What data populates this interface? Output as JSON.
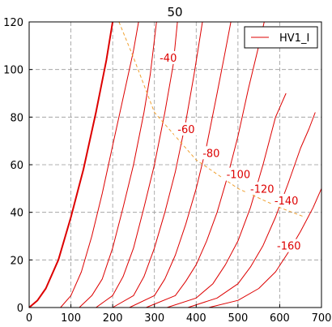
{
  "chart_data": {
    "type": "line",
    "title": "50",
    "xlabel": "",
    "ylabel": "",
    "xlim": [
      0,
      700
    ],
    "ylim": [
      0,
      120
    ],
    "xticks": [
      0,
      100,
      200,
      300,
      400,
      500,
      600,
      700
    ],
    "yticks": [
      0,
      20,
      40,
      60,
      80,
      100,
      120
    ],
    "grid": true,
    "legend": {
      "position": "top-right",
      "entries": [
        "HV1_I"
      ]
    },
    "colors": {
      "series": "#dd0000",
      "load_line": "#f0a030",
      "grid": "#999999"
    },
    "series": [
      {
        "label": "",
        "thick": true,
        "points": [
          [
            0,
            0
          ],
          [
            20,
            3
          ],
          [
            40,
            8
          ],
          [
            70,
            20
          ],
          [
            100,
            38
          ],
          [
            130,
            58
          ],
          [
            160,
            82
          ],
          [
            185,
            104
          ],
          [
            200,
            120
          ]
        ]
      },
      {
        "label": "-40",
        "points": [
          [
            75,
            0
          ],
          [
            100,
            5
          ],
          [
            125,
            15
          ],
          [
            150,
            30
          ],
          [
            175,
            48
          ],
          [
            200,
            68
          ],
          [
            225,
            88
          ],
          [
            250,
            108
          ],
          [
            262,
            120
          ]
        ]
      },
      {
        "label": "-60",
        "points": [
          [
            120,
            0
          ],
          [
            150,
            5
          ],
          [
            175,
            12
          ],
          [
            200,
            25
          ],
          [
            225,
            42
          ],
          [
            250,
            60
          ],
          [
            275,
            82
          ],
          [
            290,
            98
          ],
          [
            305,
            120
          ]
        ]
      },
      {
        "label": "-80",
        "points": [
          [
            160,
            0
          ],
          [
            200,
            5
          ],
          [
            225,
            13
          ],
          [
            250,
            25
          ],
          [
            275,
            42
          ],
          [
            300,
            60
          ],
          [
            325,
            82
          ],
          [
            345,
            102
          ],
          [
            355,
            120
          ]
        ]
      },
      {
        "label": "-100",
        "points": [
          [
            200,
            0
          ],
          [
            250,
            5
          ],
          [
            275,
            13
          ],
          [
            300,
            25
          ],
          [
            325,
            40
          ],
          [
            350,
            57
          ],
          [
            375,
            78
          ],
          [
            395,
            98
          ],
          [
            415,
            120
          ]
        ]
      },
      {
        "label": "-120",
        "points": [
          [
            240,
            0
          ],
          [
            300,
            5
          ],
          [
            325,
            12
          ],
          [
            350,
            22
          ],
          [
            375,
            35
          ],
          [
            400,
            50
          ],
          [
            425,
            68
          ],
          [
            450,
            90
          ],
          [
            470,
            108
          ],
          [
            483,
            120
          ]
        ]
      },
      {
        "label": "-140",
        "points": [
          [
            280,
            0
          ],
          [
            350,
            5
          ],
          [
            375,
            11
          ],
          [
            400,
            18
          ],
          [
            425,
            28
          ],
          [
            450,
            40
          ],
          [
            475,
            55
          ],
          [
            500,
            72
          ],
          [
            525,
            92
          ],
          [
            550,
            110
          ],
          [
            563,
            120
          ]
        ]
      },
      {
        "label": "-160",
        "points": [
          [
            330,
            0
          ],
          [
            400,
            4
          ],
          [
            440,
            10
          ],
          [
            470,
            18
          ],
          [
            500,
            28
          ],
          [
            530,
            42
          ],
          [
            560,
            60
          ],
          [
            590,
            80
          ],
          [
            615,
            90
          ]
        ]
      },
      {
        "label": "",
        "points": [
          [
            380,
            0
          ],
          [
            450,
            4
          ],
          [
            500,
            10
          ],
          [
            530,
            17
          ],
          [
            560,
            26
          ],
          [
            590,
            38
          ],
          [
            620,
            52
          ],
          [
            650,
            67
          ],
          [
            670,
            75
          ],
          [
            685,
            82
          ]
        ]
      },
      {
        "label": "",
        "points": [
          [
            430,
            0
          ],
          [
            500,
            3
          ],
          [
            550,
            8
          ],
          [
            590,
            15
          ],
          [
            620,
            23
          ],
          [
            650,
            32
          ],
          [
            680,
            42
          ],
          [
            700,
            50
          ]
        ]
      }
    ],
    "load_line": {
      "label": "",
      "style": "dashed",
      "points": [
        [
          215,
          120
        ],
        [
          250,
          105
        ],
        [
          300,
          82
        ],
        [
          400,
          62
        ],
        [
          500,
          50
        ],
        [
          600,
          42
        ],
        [
          660,
          38
        ]
      ]
    },
    "annotations": [
      {
        "text": "-40",
        "x": 333,
        "y": 104
      },
      {
        "text": "-60",
        "x": 376,
        "y": 74
      },
      {
        "text": "-80",
        "x": 436,
        "y": 64
      },
      {
        "text": "-100",
        "x": 501,
        "y": 55
      },
      {
        "text": "-120",
        "x": 558,
        "y": 49
      },
      {
        "text": "-140",
        "x": 616,
        "y": 44
      },
      {
        "text": "-160",
        "x": 622,
        "y": 25
      }
    ]
  }
}
